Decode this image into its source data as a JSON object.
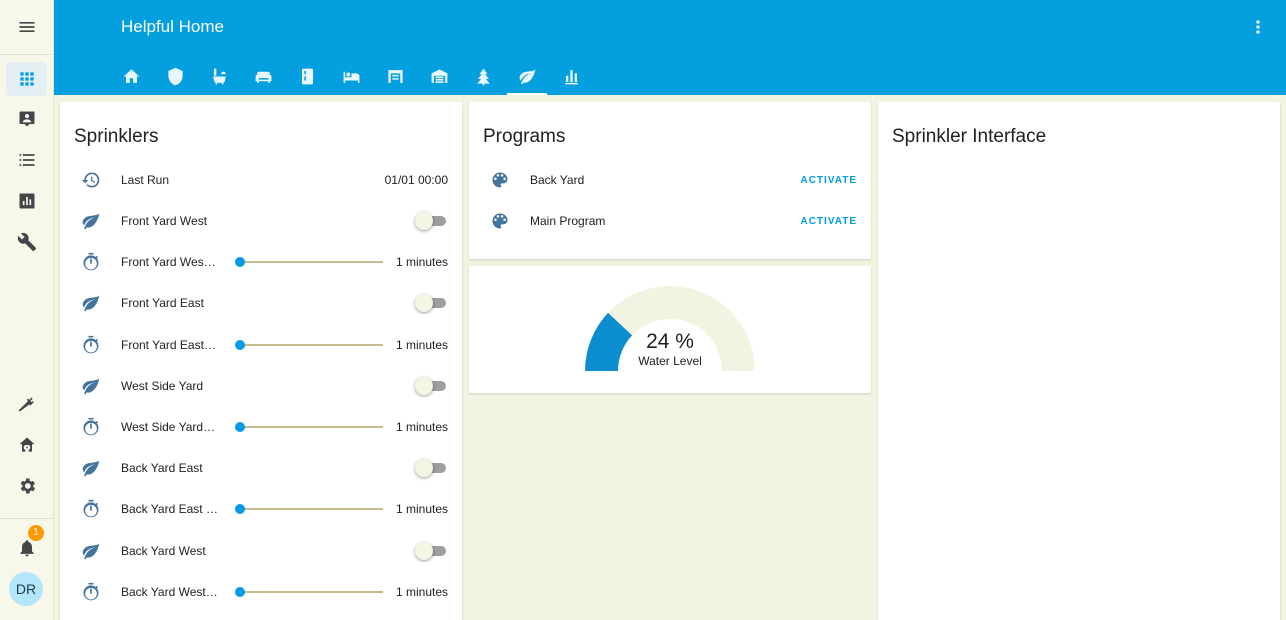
{
  "app": {
    "title": "Helpful Home"
  },
  "sidebar": {
    "items": [
      {
        "name": "overview",
        "icon": "apps-icon"
      },
      {
        "name": "map",
        "icon": "account-box-icon"
      },
      {
        "name": "logbook",
        "icon": "list-icon"
      },
      {
        "name": "history",
        "icon": "chart-box-icon"
      },
      {
        "name": "hacs",
        "icon": "wrench-icon"
      },
      {
        "name": "developer-tools",
        "icon": "hammer-icon"
      },
      {
        "name": "home-assistant",
        "icon": "home-gear-icon"
      },
      {
        "name": "settings",
        "icon": "gear-icon"
      }
    ],
    "notifications_count": "1",
    "user_initials": "DR"
  },
  "tabs": [
    "home-icon",
    "shield-icon",
    "bath-icon",
    "sofa-icon",
    "fridge-icon",
    "bed-icon",
    "garage-icon",
    "warehouse-icon",
    "tree-icon",
    "leaf-icon",
    "chart-bar-icon"
  ],
  "active_tab": 9,
  "sprinklers": {
    "title": "Sprinklers",
    "last_run": {
      "label": "Last Run",
      "value": "01/01 00:00"
    },
    "rows": [
      {
        "type": "toggle",
        "label": "Front Yard West",
        "state": false
      },
      {
        "type": "slider",
        "label": "Front Yard West Duration",
        "value": "1 minutes",
        "level": 0
      },
      {
        "type": "toggle",
        "label": "Front Yard East",
        "state": false
      },
      {
        "type": "slider",
        "label": "Front Yard East Duration",
        "value": "1 minutes",
        "level": 0
      },
      {
        "type": "toggle",
        "label": "West Side Yard",
        "state": false
      },
      {
        "type": "slider",
        "label": "West Side Yard Duration",
        "value": "1 minutes",
        "level": 0
      },
      {
        "type": "toggle",
        "label": "Back Yard East",
        "state": false
      },
      {
        "type": "slider",
        "label": "Back Yard East Duration",
        "value": "1 minutes",
        "level": 0
      },
      {
        "type": "toggle",
        "label": "Back Yard West",
        "state": false
      },
      {
        "type": "slider",
        "label": "Back Yard West Duration",
        "value": "1 minutes",
        "level": 0
      }
    ]
  },
  "programs": {
    "title": "Programs",
    "items": [
      {
        "label": "Back Yard",
        "action": "ACTIVATE"
      },
      {
        "label": "Main Program",
        "action": "ACTIVATE"
      }
    ]
  },
  "gauge": {
    "value": "24 %",
    "name": "Water Level",
    "level": 0.24,
    "color": "#0b8ed0",
    "track_color": "#f2f4e1"
  },
  "sprinkler_interface": {
    "title": "Sprinkler Interface"
  }
}
